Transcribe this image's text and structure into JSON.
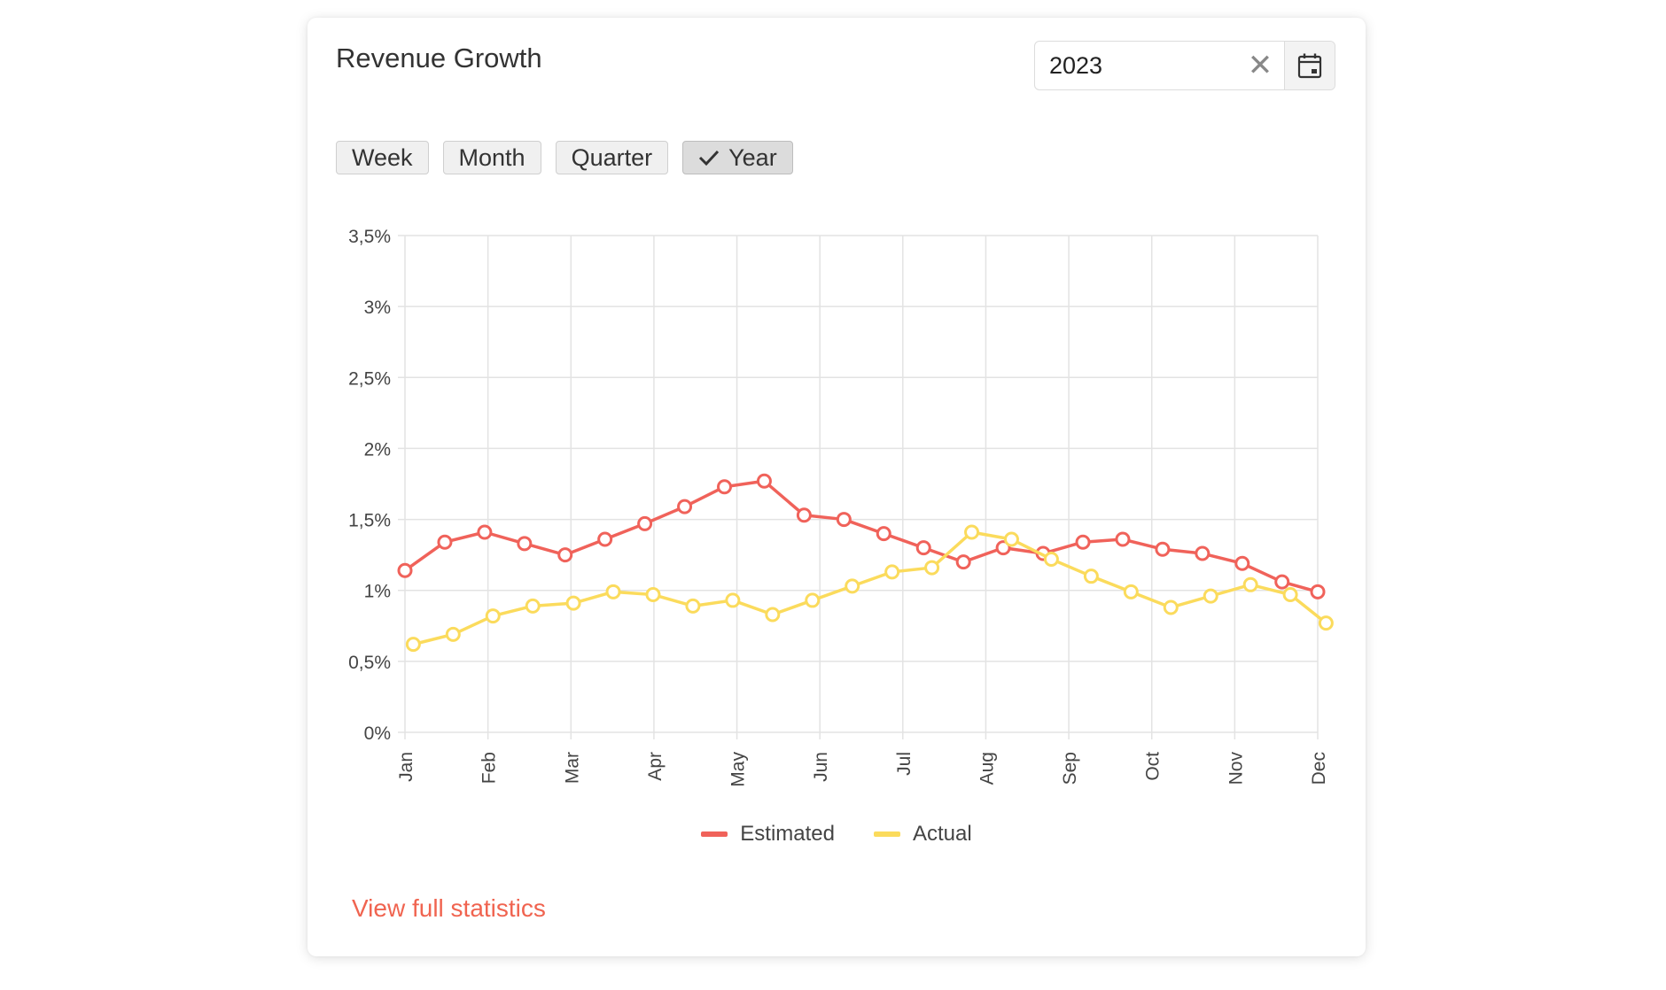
{
  "card": {
    "title": "Revenue Growth",
    "date_value": "2023",
    "clear_icon": "close-icon",
    "calendar_icon": "calendar-icon",
    "periods": [
      "Week",
      "Month",
      "Quarter",
      "Year"
    ],
    "active_period": "Year",
    "link_label": "View full statistics"
  },
  "colors": {
    "estimated": "#f0625a",
    "actual": "#fbdb5c",
    "link": "#f06450"
  },
  "chart_data": {
    "type": "line",
    "title": "",
    "xlabel": "",
    "ylabel": "",
    "y_ticks": [
      0,
      0.5,
      1,
      1.5,
      2,
      2.5,
      3,
      3.5
    ],
    "y_tick_labels": [
      "0%",
      "0,5%",
      "1%",
      "1,5%",
      "2%",
      "2,5%",
      "3%",
      "3,5%"
    ],
    "ylim": [
      0,
      3.5
    ],
    "xlim": [
      0,
      11
    ],
    "x_tick_labels": [
      "Jan",
      "Feb",
      "Mar",
      "Apr",
      "May",
      "Jun",
      "Jul",
      "Aug",
      "Sep",
      "Oct",
      "Nov",
      "Dec"
    ],
    "grid": true,
    "legend_position": "bottom",
    "series": [
      {
        "name": "Estimated",
        "x": [
          0,
          0.48,
          0.96,
          1.44,
          1.93,
          2.41,
          2.89,
          3.37,
          3.85,
          4.33,
          4.81,
          5.29,
          5.77,
          6.25,
          6.73,
          7.21,
          7.69,
          8.17,
          8.65,
          9.13,
          9.61,
          10.09,
          10.57,
          11
        ],
        "y": [
          1.14,
          1.34,
          1.41,
          1.33,
          1.25,
          1.36,
          1.47,
          1.59,
          1.73,
          1.77,
          1.53,
          1.5,
          1.4,
          1.3,
          1.2,
          1.3,
          1.26,
          1.34,
          1.36,
          1.29,
          1.26,
          1.19,
          1.06,
          0.99
        ]
      },
      {
        "name": "Actual",
        "x": [
          0.1,
          0.58,
          1.06,
          1.54,
          2.03,
          2.51,
          2.99,
          3.47,
          3.95,
          4.43,
          4.91,
          5.39,
          5.87,
          6.35,
          6.83,
          7.31,
          7.79,
          8.27,
          8.75,
          9.23,
          9.71,
          10.19,
          10.67,
          11.1
        ],
        "y": [
          0.62,
          0.69,
          0.82,
          0.89,
          0.91,
          0.99,
          0.97,
          0.89,
          0.93,
          0.83,
          0.93,
          1.03,
          1.13,
          1.16,
          1.41,
          1.36,
          1.22,
          1.1,
          0.99,
          0.88,
          0.96,
          1.04,
          0.97,
          0.77
        ]
      }
    ]
  }
}
